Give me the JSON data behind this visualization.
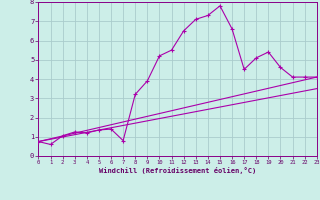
{
  "xlabel": "Windchill (Refroidissement éolien,°C)",
  "ylabel": "",
  "background_color": "#cceee8",
  "grid_color": "#aacccc",
  "line_color": "#aa00aa",
  "xlim": [
    0,
    23
  ],
  "ylim": [
    0,
    8
  ],
  "xticks": [
    0,
    1,
    2,
    3,
    4,
    5,
    6,
    7,
    8,
    9,
    10,
    11,
    12,
    13,
    14,
    15,
    16,
    17,
    18,
    19,
    20,
    21,
    22,
    23
  ],
  "yticks": [
    0,
    1,
    2,
    3,
    4,
    5,
    6,
    7,
    8
  ],
  "line1_x": [
    0,
    1,
    2,
    3,
    4,
    5,
    6,
    7,
    8,
    9,
    10,
    11,
    12,
    13,
    14,
    15,
    16,
    17,
    18,
    19,
    20,
    21,
    22,
    23
  ],
  "line1_y": [
    0.75,
    0.6,
    1.05,
    1.25,
    1.2,
    1.35,
    1.4,
    0.8,
    3.2,
    3.9,
    5.2,
    5.5,
    6.5,
    7.1,
    7.3,
    7.8,
    6.6,
    4.5,
    5.1,
    5.4,
    4.6,
    4.1,
    4.1,
    4.1
  ],
  "line2_x": [
    0,
    23
  ],
  "line2_y": [
    0.75,
    3.5
  ],
  "line3_x": [
    0,
    23
  ],
  "line3_y": [
    0.75,
    4.1
  ]
}
